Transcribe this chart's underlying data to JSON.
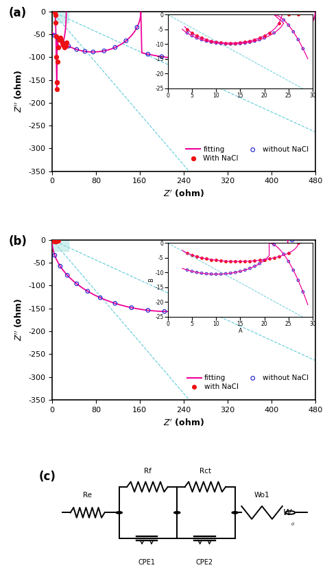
{
  "colors": {
    "fitting": "#EE0099",
    "with_nacl": "#EE1111",
    "without_nacl": "#2222CC",
    "dashed_line": "#66CCDD",
    "shading": "#99DDDD"
  },
  "panel_a": {
    "xlim": [
      0,
      480
    ],
    "ylim": [
      0,
      350
    ],
    "xticks": [
      0,
      80,
      160,
      240,
      320,
      400,
      480
    ],
    "yticks": [
      0,
      50,
      100,
      150,
      200,
      250,
      300,
      350
    ],
    "yticklabels": [
      "0",
      "-50",
      "-100",
      "-150",
      "-200",
      "-250",
      "-300",
      "-350"
    ]
  },
  "panel_b": {
    "xlim": [
      0,
      480
    ],
    "ylim": [
      0,
      350
    ],
    "xticks": [
      0,
      80,
      160,
      240,
      320,
      400,
      480
    ],
    "yticks": [
      0,
      50,
      100,
      150,
      200,
      250,
      300,
      350
    ],
    "yticklabels": [
      "0",
      "-50",
      "-100",
      "-150",
      "-200",
      "-250",
      "-300",
      "-350"
    ]
  }
}
